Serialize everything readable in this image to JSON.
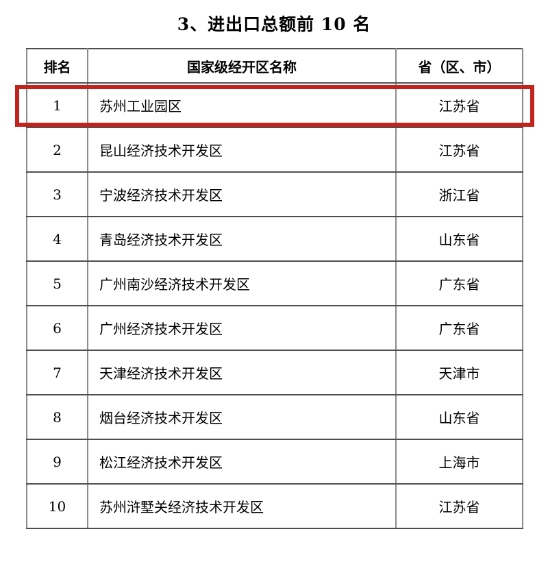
{
  "title": "3、进出口总额前 10 名",
  "table": {
    "headers": [
      "排名",
      "国家级经开区名称",
      "省（区、市）"
    ],
    "rows": [
      {
        "rank": "1",
        "name": "苏州工业园区",
        "province": "江苏省",
        "highlighted": true
      },
      {
        "rank": "2",
        "name": "昆山经济技术开发区",
        "province": "江苏省",
        "highlighted": false
      },
      {
        "rank": "3",
        "name": "宁波经济技术开发区",
        "province": "浙江省",
        "highlighted": false
      },
      {
        "rank": "4",
        "name": "青岛经济技术开发区",
        "province": "山东省",
        "highlighted": false
      },
      {
        "rank": "5",
        "name": "广州南沙经济技术开发区",
        "province": "广东省",
        "highlighted": false
      },
      {
        "rank": "6",
        "name": "广州经济技术开发区",
        "province": "广东省",
        "highlighted": false
      },
      {
        "rank": "7",
        "name": "天津经济技术开发区",
        "province": "天津市",
        "highlighted": false
      },
      {
        "rank": "8",
        "name": "烟台经济技术开发区",
        "province": "山东省",
        "highlighted": false
      },
      {
        "rank": "9",
        "name": "松江经济技术开发区",
        "province": "上海市",
        "highlighted": false
      },
      {
        "rank": "10",
        "name": "苏州浒墅关经济技术开发区",
        "province": "江苏省",
        "highlighted": false
      }
    ]
  },
  "colors": {
    "highlight_border": "#c0241c",
    "border_horizontal": "#4f4f4f",
    "border_vertical": "#8c8c8c",
    "text": "#000000",
    "background": "#ffffff"
  }
}
